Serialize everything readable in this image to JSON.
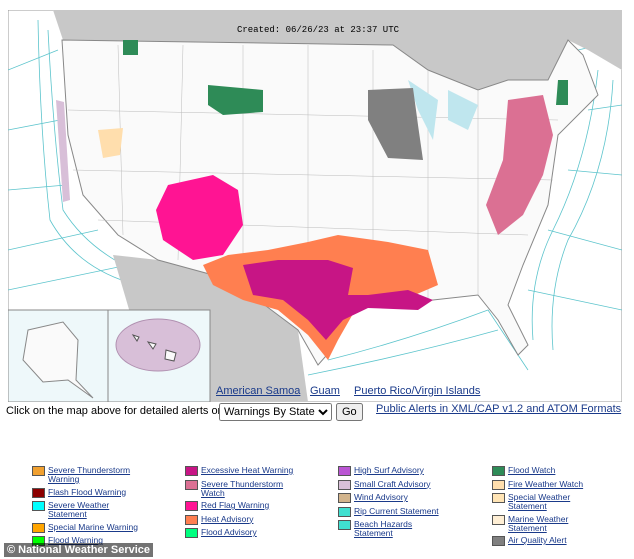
{
  "header": {
    "created": "Created: 06/26/23 at 23:37 UTC"
  },
  "map_links": [
    "American Samoa",
    "Guam",
    "Puerto Rico/Virgin Islands"
  ],
  "controls": {
    "prompt": "Click on the map above for detailed alerts or",
    "select_options": [
      "Warnings By State"
    ],
    "button": "Go",
    "feeds_link": "Public Alerts in XML/CAP v1.2 and ATOM Formats"
  },
  "legend": {
    "columns": [
      {
        "items": [
          {
            "label": "Severe Thunderstorm Warning",
            "color": "#f0a030"
          },
          {
            "label": "Flash Flood Warning",
            "color": "#8b0000"
          },
          {
            "label": "Severe Weather Statement",
            "color": "#00ffff"
          },
          {
            "label": "Special Marine Warning",
            "color": "#ffa500"
          },
          {
            "label": "Flood Warning",
            "color": "#00ff00"
          }
        ]
      },
      {
        "items": [
          {
            "label": "Excessive Heat Warning",
            "color": "#c71585"
          },
          {
            "label": "Severe Thunderstorm Watch",
            "color": "#db7093"
          },
          {
            "label": "Red Flag Warning",
            "color": "#ff1493"
          },
          {
            "label": "Heat Advisory",
            "color": "#ff7f50"
          },
          {
            "label": "Flood Advisory",
            "color": "#00ff7f"
          }
        ]
      },
      {
        "items": [
          {
            "label": "High Surf Advisory",
            "color": "#ba55d3"
          },
          {
            "label": "Small Craft Advisory",
            "color": "#d8bfd8"
          },
          {
            "label": "Wind Advisory",
            "color": "#d2b48c"
          },
          {
            "label": "Rip Current Statement",
            "color": "#40e0d0"
          },
          {
            "label": "Beach Hazards Statement",
            "color": "#40e0d0"
          }
        ]
      },
      {
        "items": [
          {
            "label": "Flood Watch",
            "color": "#2e8b57"
          },
          {
            "label": "Fire Weather Watch",
            "color": "#ffdead"
          },
          {
            "label": "Special Weather Statement",
            "color": "#ffe4b5"
          },
          {
            "label": "Marine Weather Statement",
            "color": "#ffefd5"
          },
          {
            "label": "Air Quality Alert",
            "color": "#808080"
          }
        ]
      }
    ]
  },
  "watermark": "© National Weather Service"
}
